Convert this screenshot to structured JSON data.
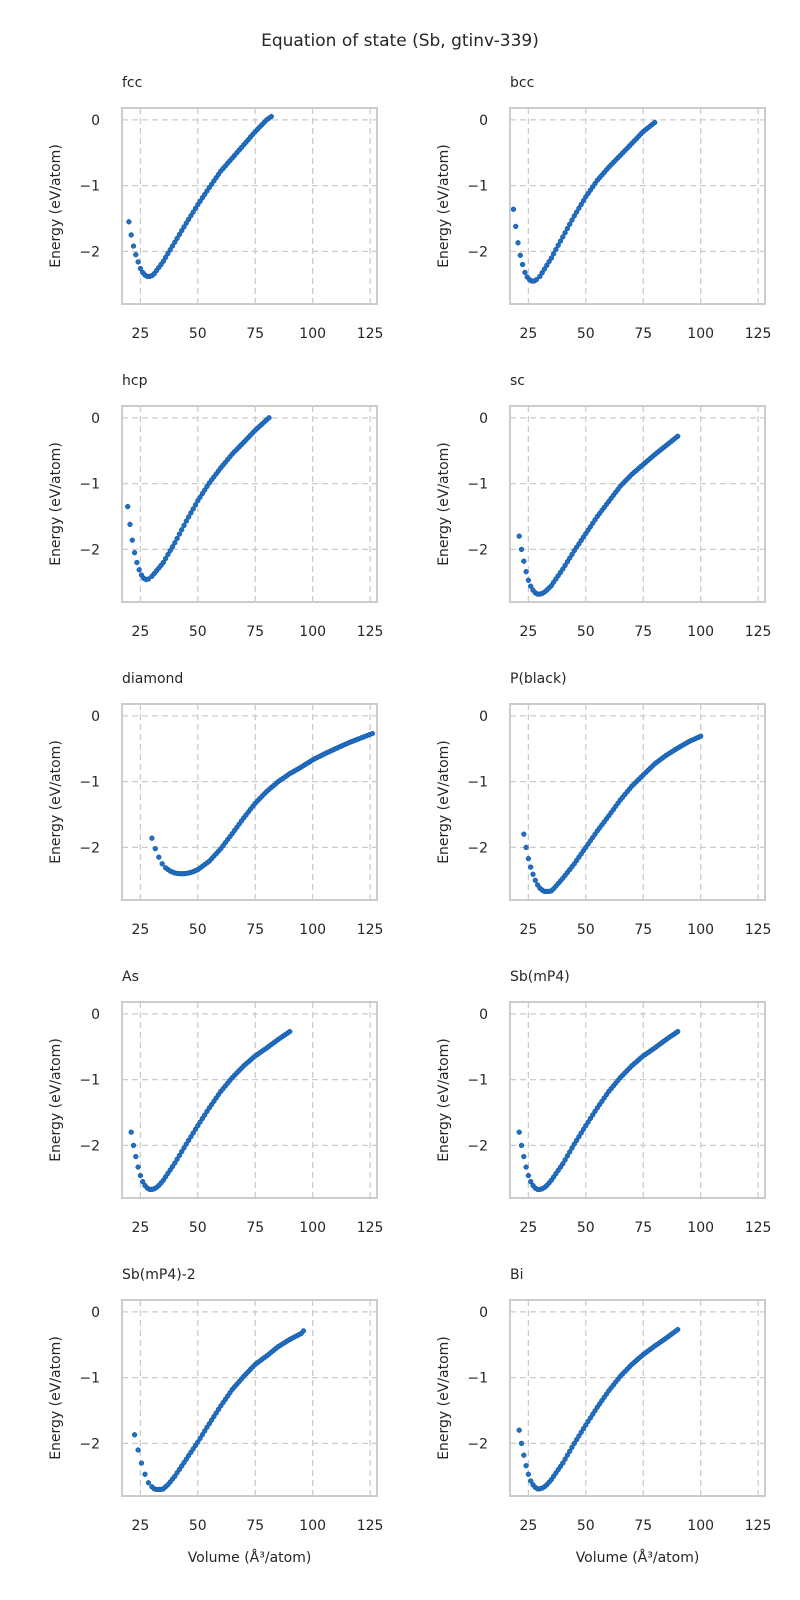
{
  "title": "Equation of state (Sb, gtinv-339)",
  "chart_data": [
    {
      "type": "scatter",
      "title": "fcc",
      "xlabel": "",
      "ylabel": "Energy (eV/atom)",
      "xlim": [
        17,
        128
      ],
      "ylim": [
        -2.8,
        0.18
      ],
      "xticks": [
        25,
        50,
        75,
        100,
        125
      ],
      "yticks": [
        0,
        -1,
        -2
      ],
      "grid": true,
      "color": "#1f6fc5",
      "x": [
        20,
        21,
        22,
        23,
        24,
        25,
        26,
        27,
        28,
        29,
        30,
        31,
        35,
        40,
        45,
        50,
        55,
        60,
        65,
        70,
        75,
        80,
        82
      ],
      "y": [
        -1.55,
        -1.75,
        -1.92,
        -2.05,
        -2.16,
        -2.26,
        -2.32,
        -2.36,
        -2.38,
        -2.38,
        -2.37,
        -2.34,
        -2.15,
        -1.86,
        -1.57,
        -1.29,
        -1.03,
        -0.78,
        -0.58,
        -0.38,
        -0.18,
        0.0,
        0.05
      ]
    },
    {
      "type": "scatter",
      "title": "bcc",
      "xlabel": "",
      "ylabel": "Energy (eV/atom)",
      "xlim": [
        17,
        128
      ],
      "ylim": [
        -2.8,
        0.18
      ],
      "xticks": [
        25,
        50,
        75,
        100,
        125
      ],
      "yticks": [
        0,
        -1,
        -2
      ],
      "grid": true,
      "color": "#1f6fc5",
      "x": [
        18.5,
        19.5,
        20.5,
        21.5,
        22.5,
        23.5,
        24.5,
        25.5,
        26.5,
        27.5,
        28.5,
        30,
        35,
        40,
        45,
        50,
        55,
        60,
        65,
        70,
        75,
        80
      ],
      "y": [
        -1.36,
        -1.62,
        -1.87,
        -2.06,
        -2.2,
        -2.32,
        -2.39,
        -2.43,
        -2.45,
        -2.45,
        -2.43,
        -2.38,
        -2.1,
        -1.78,
        -1.46,
        -1.17,
        -0.92,
        -0.72,
        -0.54,
        -0.36,
        -0.18,
        -0.04
      ]
    },
    {
      "type": "scatter",
      "title": "hcp",
      "xlabel": "",
      "ylabel": "Energy (eV/atom)",
      "xlim": [
        17,
        128
      ],
      "ylim": [
        -2.8,
        0.18
      ],
      "xticks": [
        25,
        50,
        75,
        100,
        125
      ],
      "yticks": [
        0,
        -1,
        -2
      ],
      "grid": true,
      "color": "#1f6fc5",
      "x": [
        19.5,
        20.5,
        21.5,
        22.5,
        23.5,
        24.5,
        25.5,
        26.5,
        27.5,
        28.5,
        30,
        35,
        40,
        45,
        50,
        55,
        60,
        65,
        70,
        75,
        80,
        81
      ],
      "y": [
        -1.35,
        -1.62,
        -1.86,
        -2.05,
        -2.2,
        -2.31,
        -2.39,
        -2.44,
        -2.46,
        -2.45,
        -2.41,
        -2.2,
        -1.9,
        -1.57,
        -1.26,
        -0.99,
        -0.76,
        -0.55,
        -0.37,
        -0.19,
        -0.03,
        0.0
      ]
    },
    {
      "type": "scatter",
      "title": "sc",
      "xlabel": "",
      "ylabel": "Energy (eV/atom)",
      "xlim": [
        17,
        128
      ],
      "ylim": [
        -2.8,
        0.18
      ],
      "xticks": [
        25,
        50,
        75,
        100,
        125
      ],
      "yticks": [
        0,
        -1,
        -2
      ],
      "grid": true,
      "color": "#1f6fc5",
      "x": [
        21,
        22,
        23,
        24,
        25,
        26,
        27,
        28,
        29,
        30,
        31,
        32,
        33,
        35,
        40,
        45,
        50,
        55,
        60,
        65,
        70,
        75,
        80,
        85,
        90
      ],
      "y": [
        -1.8,
        -2.0,
        -2.18,
        -2.34,
        -2.47,
        -2.56,
        -2.62,
        -2.66,
        -2.68,
        -2.68,
        -2.67,
        -2.65,
        -2.62,
        -2.55,
        -2.3,
        -2.02,
        -1.76,
        -1.5,
        -1.27,
        -1.04,
        -0.86,
        -0.71,
        -0.56,
        -0.42,
        -0.28
      ]
    },
    {
      "type": "scatter",
      "title": "diamond",
      "xlabel": "",
      "ylabel": "Energy (eV/atom)",
      "xlim": [
        17,
        128
      ],
      "ylim": [
        -2.8,
        0.18
      ],
      "xticks": [
        25,
        50,
        75,
        100,
        125
      ],
      "yticks": [
        0,
        -1,
        -2
      ],
      "grid": true,
      "color": "#1f6fc5",
      "x": [
        30,
        31.5,
        33,
        34.5,
        36,
        38,
        40,
        42,
        44,
        46,
        48,
        50,
        55,
        60,
        65,
        70,
        75,
        80,
        85,
        90,
        95,
        100,
        105,
        110,
        115,
        120,
        126
      ],
      "y": [
        -1.86,
        -2.02,
        -2.15,
        -2.25,
        -2.31,
        -2.36,
        -2.39,
        -2.4,
        -2.4,
        -2.39,
        -2.37,
        -2.34,
        -2.21,
        -2.02,
        -1.79,
        -1.55,
        -1.33,
        -1.15,
        -1.0,
        -0.88,
        -0.78,
        -0.67,
        -0.58,
        -0.5,
        -0.42,
        -0.35,
        -0.27
      ]
    },
    {
      "type": "scatter",
      "title": "P(black)",
      "xlabel": "",
      "ylabel": "Energy (eV/atom)",
      "xlim": [
        17,
        128
      ],
      "ylim": [
        -2.8,
        0.18
      ],
      "xticks": [
        25,
        50,
        75,
        100,
        125
      ],
      "yticks": [
        0,
        -1,
        -2
      ],
      "grid": true,
      "color": "#1f6fc5",
      "x": [
        23,
        24,
        25,
        26,
        27,
        28,
        29,
        30,
        31,
        32,
        33,
        34,
        35,
        36,
        40,
        45,
        50,
        55,
        60,
        65,
        70,
        75,
        80,
        85,
        90,
        95,
        100
      ],
      "y": [
        -1.8,
        -2.0,
        -2.17,
        -2.3,
        -2.41,
        -2.5,
        -2.57,
        -2.62,
        -2.65,
        -2.67,
        -2.67,
        -2.67,
        -2.66,
        -2.63,
        -2.47,
        -2.25,
        -2.0,
        -1.75,
        -1.52,
        -1.28,
        -1.07,
        -0.9,
        -0.73,
        -0.6,
        -0.49,
        -0.39,
        -0.31
      ]
    },
    {
      "type": "scatter",
      "title": "As",
      "xlabel": "",
      "ylabel": "Energy (eV/atom)",
      "xlim": [
        17,
        128
      ],
      "ylim": [
        -2.8,
        0.18
      ],
      "xticks": [
        25,
        50,
        75,
        100,
        125
      ],
      "yticks": [
        0,
        -1,
        -2
      ],
      "grid": true,
      "color": "#1f6fc5",
      "x": [
        21,
        22,
        23,
        24,
        25,
        26,
        27,
        28,
        29,
        30,
        31,
        32,
        33,
        35,
        40,
        45,
        50,
        55,
        60,
        65,
        70,
        75,
        80,
        85,
        90
      ],
      "y": [
        -1.8,
        -2.0,
        -2.17,
        -2.33,
        -2.46,
        -2.55,
        -2.61,
        -2.65,
        -2.67,
        -2.67,
        -2.66,
        -2.64,
        -2.61,
        -2.53,
        -2.27,
        -1.98,
        -1.7,
        -1.43,
        -1.18,
        -0.97,
        -0.79,
        -0.64,
        -0.52,
        -0.39,
        -0.27
      ]
    },
    {
      "type": "scatter",
      "title": "Sb(mP4)",
      "xlabel": "",
      "ylabel": "Energy (eV/atom)",
      "xlim": [
        17,
        128
      ],
      "ylim": [
        -2.8,
        0.18
      ],
      "xticks": [
        25,
        50,
        75,
        100,
        125
      ],
      "yticks": [
        0,
        -1,
        -2
      ],
      "grid": true,
      "color": "#1f6fc5",
      "x": [
        21,
        22,
        23,
        24,
        25,
        26,
        27,
        28,
        29,
        30,
        31,
        32,
        33,
        35,
        40,
        45,
        50,
        55,
        60,
        65,
        70,
        75,
        80,
        85,
        90
      ],
      "y": [
        -1.8,
        -2.0,
        -2.17,
        -2.33,
        -2.46,
        -2.55,
        -2.61,
        -2.65,
        -2.67,
        -2.67,
        -2.66,
        -2.64,
        -2.61,
        -2.53,
        -2.28,
        -1.98,
        -1.7,
        -1.43,
        -1.18,
        -0.97,
        -0.79,
        -0.64,
        -0.52,
        -0.39,
        -0.27
      ]
    },
    {
      "type": "scatter",
      "title": "Sb(mP4)-2",
      "xlabel": "Volume (Å³/atom)",
      "ylabel": "Energy (eV/atom)",
      "xlim": [
        17,
        128
      ],
      "ylim": [
        -2.8,
        0.18
      ],
      "xticks": [
        25,
        50,
        75,
        100,
        125
      ],
      "yticks": [
        0,
        -1,
        -2
      ],
      "grid": true,
      "color": "#1f6fc5",
      "x": [
        22.5,
        24,
        25.5,
        27,
        28.5,
        30,
        31,
        32,
        33,
        34,
        35,
        37,
        40,
        45,
        50,
        55,
        60,
        65,
        70,
        75,
        80,
        85,
        90,
        95,
        96
      ],
      "y": [
        -1.87,
        -2.1,
        -2.3,
        -2.47,
        -2.6,
        -2.66,
        -2.69,
        -2.7,
        -2.7,
        -2.7,
        -2.69,
        -2.63,
        -2.5,
        -2.24,
        -1.98,
        -1.7,
        -1.43,
        -1.18,
        -0.98,
        -0.8,
        -0.67,
        -0.53,
        -0.42,
        -0.33,
        -0.29
      ]
    },
    {
      "type": "scatter",
      "title": "Bi",
      "xlabel": "Volume (Å³/atom)",
      "ylabel": "Energy (eV/atom)",
      "xlim": [
        17,
        128
      ],
      "ylim": [
        -2.8,
        0.18
      ],
      "xticks": [
        25,
        50,
        75,
        100,
        125
      ],
      "yticks": [
        0,
        -1,
        -2
      ],
      "grid": true,
      "color": "#1f6fc5",
      "x": [
        21,
        22,
        23,
        24,
        25,
        26,
        27,
        28,
        29,
        30,
        31,
        32,
        33,
        35,
        40,
        45,
        50,
        55,
        60,
        65,
        70,
        75,
        80,
        85,
        90
      ],
      "y": [
        -1.8,
        -2.0,
        -2.18,
        -2.34,
        -2.47,
        -2.57,
        -2.63,
        -2.67,
        -2.69,
        -2.69,
        -2.68,
        -2.66,
        -2.63,
        -2.55,
        -2.3,
        -2.0,
        -1.72,
        -1.45,
        -1.2,
        -0.98,
        -0.8,
        -0.65,
        -0.52,
        -0.4,
        -0.27
      ]
    }
  ]
}
